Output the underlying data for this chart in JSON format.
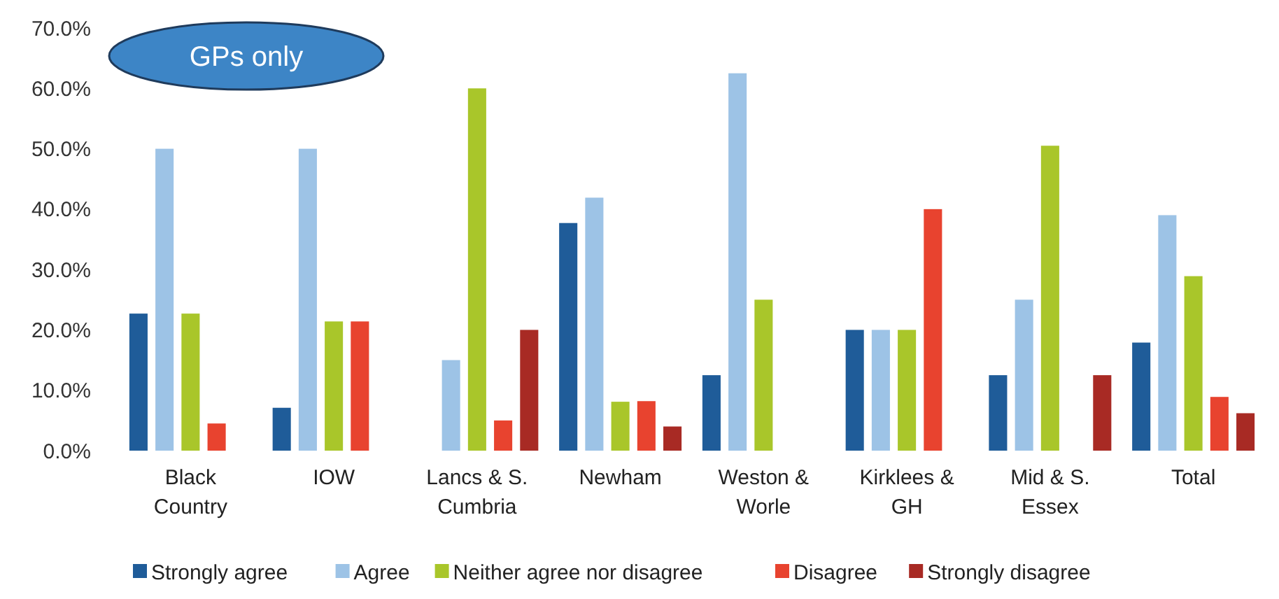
{
  "chart_data": {
    "type": "bar",
    "categories": [
      "Black Country",
      "IOW",
      "Lancs & S. Cumbria",
      "Newham",
      "Weston & Worle",
      "Kirklees & GH",
      "Mid & S. Essex",
      "Total"
    ],
    "series": [
      {
        "name": "Strongly agree",
        "color": "#1f5c99",
        "values": [
          22.7,
          7.1,
          0,
          37.7,
          12.5,
          20,
          12.5,
          17.9
        ]
      },
      {
        "name": "Agree",
        "color": "#9dc3e6",
        "values": [
          50,
          50,
          15,
          41.9,
          62.5,
          20,
          25,
          39
        ]
      },
      {
        "name": "Neither agree nor disagree",
        "color": "#a9c62a",
        "values": [
          22.7,
          21.4,
          60,
          8.1,
          25,
          20,
          50.5,
          28.9
        ]
      },
      {
        "name": "Disagree",
        "color": "#e8432f",
        "values": [
          4.5,
          21.4,
          5,
          8.2,
          0,
          40,
          0,
          8.9
        ]
      },
      {
        "name": "Strongly disagree",
        "color": "#a82a24",
        "values": [
          0,
          0,
          20,
          4,
          0,
          0,
          12.5,
          6.2
        ]
      }
    ],
    "ylim": [
      0,
      70
    ],
    "yticks": [
      {
        "value": 0,
        "label": "0.0%"
      },
      {
        "value": 10,
        "label": "10.0%"
      },
      {
        "value": 20,
        "label": "20.0%"
      },
      {
        "value": 30,
        "label": "30.0%"
      },
      {
        "value": 40,
        "label": "40.0%"
      },
      {
        "value": 50,
        "label": "50.0%"
      },
      {
        "value": 60,
        "label": "60.0%"
      },
      {
        "value": 70,
        "label": "70.0%"
      }
    ],
    "annotations": [
      "GPs only"
    ],
    "legend": "bottom",
    "grid": false
  }
}
